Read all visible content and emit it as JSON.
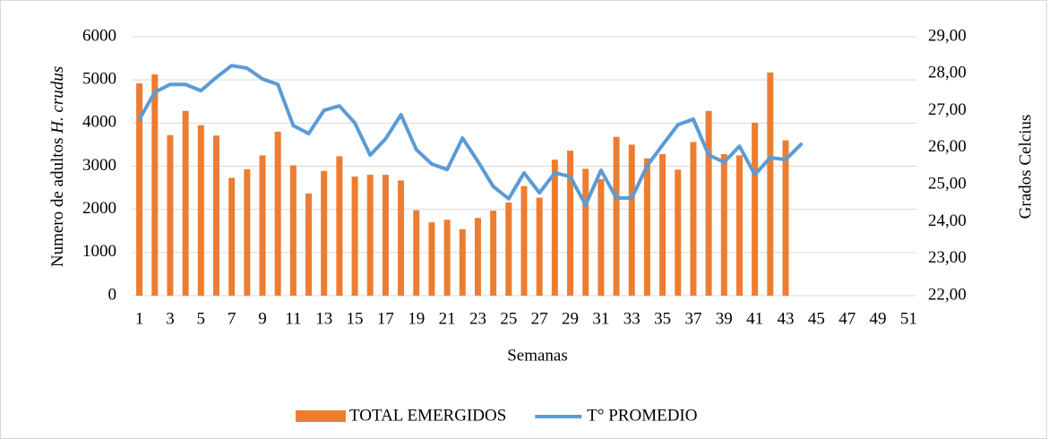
{
  "chart_data": {
    "type": "bar_line",
    "x_label": "Semanas",
    "y_label": {
      "text": "Numero de adultos",
      "italic": "H. crudus"
    },
    "y2_label": "Grados Celcius",
    "categories": [
      1,
      null,
      3,
      null,
      5,
      null,
      7,
      null,
      9,
      null,
      11,
      null,
      13,
      null,
      15,
      null,
      17,
      null,
      19,
      null,
      21,
      null,
      23,
      null,
      25,
      null,
      27,
      null,
      29,
      null,
      31,
      null,
      33,
      null,
      35,
      null,
      37,
      null,
      39,
      null,
      41,
      null,
      43,
      null,
      45,
      null,
      47,
      null,
      49,
      null,
      51
    ],
    "series": [
      {
        "name": "TOTAL EMERGIDOS",
        "color": "#ed7d31",
        "type": "bar",
        "values": [
          4920,
          5130,
          3720,
          4280,
          3950,
          3710,
          2730,
          2930,
          3250,
          3800,
          3020,
          2370,
          2890,
          3230,
          2760,
          2800,
          2800,
          2670,
          1980,
          1700,
          1760,
          1540,
          1800,
          1970,
          2160,
          2540,
          2270,
          3150,
          3360,
          2940,
          2700,
          3680,
          3500,
          3180,
          3280,
          2920,
          3560,
          4280,
          3280,
          3250,
          4010,
          5170,
          3600,
          null,
          null,
          null,
          null,
          null,
          null,
          null,
          null
        ]
      },
      {
        "name": "T° PROMEDIO",
        "color": "#5b9bd5",
        "type": "line",
        "axis": "y2",
        "values": [
          26.77,
          27.5,
          27.71,
          27.71,
          27.54,
          27.9,
          28.22,
          28.15,
          27.86,
          27.71,
          26.6,
          26.38,
          27.01,
          27.13,
          26.67,
          25.8,
          26.24,
          26.89,
          25.95,
          25.56,
          25.41,
          26.26,
          25.63,
          24.95,
          24.62,
          25.32,
          24.78,
          25.32,
          25.22,
          24.45,
          25.39,
          24.64,
          24.64,
          25.51,
          26.07,
          26.62,
          26.77,
          25.8,
          25.61,
          26.04,
          25.27,
          25.73,
          25.68,
          26.09,
          null,
          null,
          null,
          null,
          null,
          null,
          null
        ]
      }
    ],
    "ylim": [
      0,
      6000
    ],
    "yticks": [
      0,
      1000,
      2000,
      3000,
      4000,
      5000,
      6000
    ],
    "y2lim": [
      22,
      29
    ],
    "y2ticks": [
      {
        "value": 22,
        "label": "22,00"
      },
      {
        "value": 23,
        "label": "23,00"
      },
      {
        "value": 24,
        "label": "24,00"
      },
      {
        "value": 25,
        "label": "25,00"
      },
      {
        "value": 26,
        "label": "26,00"
      },
      {
        "value": 27,
        "label": "27,00"
      },
      {
        "value": 28,
        "label": "28,00"
      },
      {
        "value": 29,
        "label": "29,00"
      }
    ],
    "grid": true,
    "legend": "bottom"
  }
}
